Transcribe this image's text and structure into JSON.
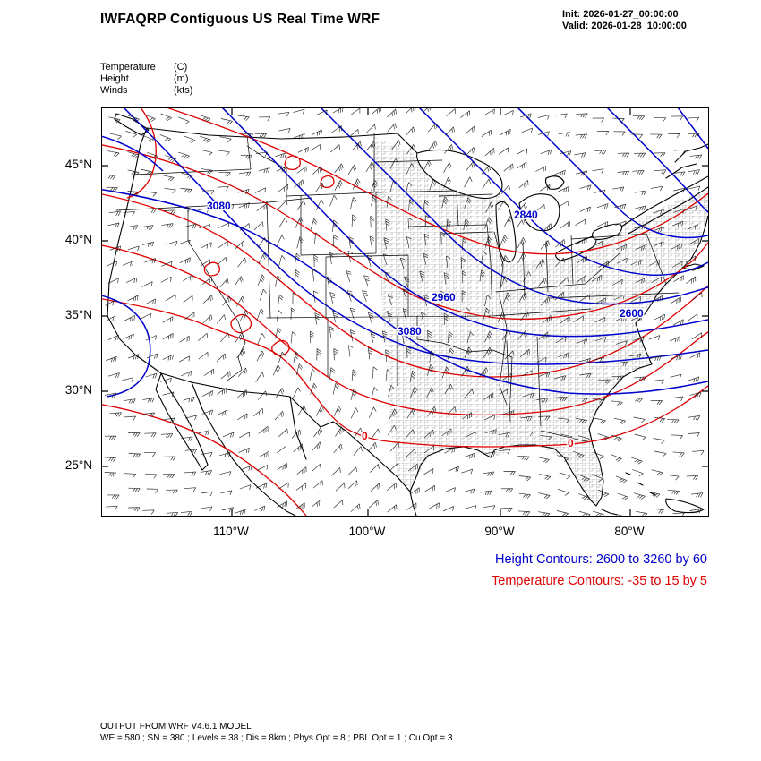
{
  "header": {
    "title": "IWFAQRP Contiguous US Real Time WRF",
    "init_label": "Init: 2026-01-27_00:00:00",
    "valid_label": "Valid: 2026-01-28_10:00:00"
  },
  "variables": [
    {
      "name": "Temperature",
      "unit": "(C)"
    },
    {
      "name": "Height",
      "unit": "(m)"
    },
    {
      "name": "Winds",
      "unit": "(kts)"
    }
  ],
  "axes": {
    "lat_ticks": [
      "45°N",
      "40°N",
      "35°N",
      "30°N",
      "25°N"
    ],
    "lon_ticks": [
      "110°W",
      "100°W",
      "90°W",
      "80°W"
    ]
  },
  "contour_info": {
    "height": "Height Contours: 2600 to 3260 by 60",
    "temperature": "Temperature Contours: -35 to 15 by 5"
  },
  "contour_labels": {
    "height_labels": [
      "3080",
      "3080",
      "2960",
      "2840",
      "2600"
    ],
    "temperature_labels": [
      "0",
      "0"
    ]
  },
  "footer": {
    "line1": "OUTPUT FROM WRF V4.6.1 MODEL",
    "line2": "WE = 580 ; SN = 380 ; Levels = 38 ; Dis = 8km ; Phys Opt = 8 ; PBL Opt = 1 ; Cu Opt = 3"
  },
  "colors": {
    "height_contour": "#0000cc",
    "temp_contour": "#e00000",
    "geography": "#000000"
  },
  "chart_data": {
    "type": "contour-map",
    "title": "IWFAQRP Contiguous US Real Time WRF",
    "region": "Contiguous US",
    "init_time": "2026-01-27_00:00:00",
    "valid_time": "2026-01-28_10:00:00",
    "fields": [
      {
        "name": "Height",
        "unit": "m",
        "style": "blue contour lines",
        "min": 2600,
        "max": 3260,
        "interval": 60,
        "labeled_values": [
          2600,
          2840,
          2960,
          3080
        ]
      },
      {
        "name": "Temperature",
        "unit": "C",
        "style": "red contour lines",
        "min": -35,
        "max": 15,
        "interval": 5,
        "labeled_values": [
          0
        ]
      },
      {
        "name": "Winds",
        "unit": "kts",
        "style": "wind barbs"
      }
    ],
    "x_axis": {
      "label": "longitude",
      "ticks": [
        "110°W",
        "100°W",
        "90°W",
        "80°W"
      ]
    },
    "y_axis": {
      "label": "latitude",
      "ticks": [
        "45°N",
        "40°N",
        "35°N",
        "30°N",
        "25°N"
      ]
    },
    "model_info": {
      "model": "WRF V4.6.1",
      "WE": 580,
      "SN": 380,
      "Levels": 38,
      "Dis": "8km",
      "Phys_Opt": 8,
      "PBL_Opt": 1,
      "Cu_Opt": 3
    }
  }
}
